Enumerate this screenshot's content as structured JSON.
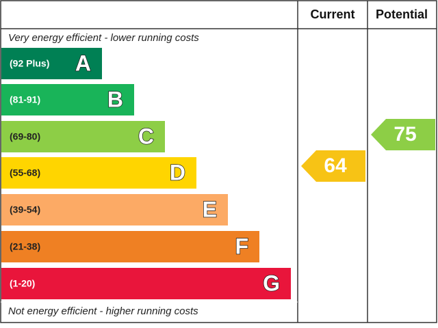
{
  "header": {
    "current": "Current",
    "potential": "Potential"
  },
  "top_note": "Very energy efficient - lower running costs",
  "bottom_note": "Not energy efficient - higher running costs",
  "bands": [
    {
      "range": "(92 Plus)",
      "letter": "A"
    },
    {
      "range": "(81-91)",
      "letter": "B"
    },
    {
      "range": "(69-80)",
      "letter": "C"
    },
    {
      "range": "(55-68)",
      "letter": "D"
    },
    {
      "range": "(39-54)",
      "letter": "E"
    },
    {
      "range": "(21-38)",
      "letter": "F"
    },
    {
      "range": "(1-20)",
      "letter": "G"
    }
  ],
  "current": 64,
  "potential": 75
}
